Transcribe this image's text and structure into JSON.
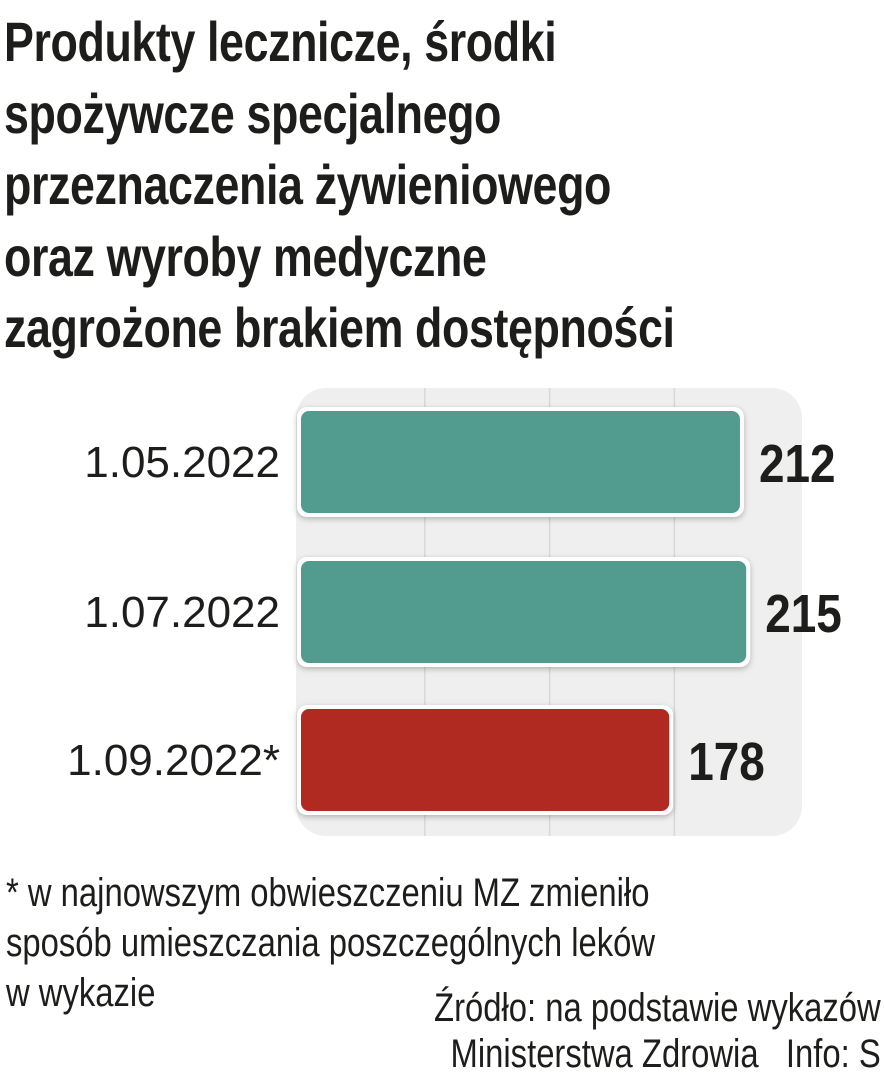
{
  "title_lines": [
    "Produkty lecznicze, środki",
    "spożywcze specjalnego",
    "przeznaczenia żywieniowego",
    "oraz wyroby medyczne",
    "zagrożone brakiem dostępności"
  ],
  "chart_data": {
    "type": "bar",
    "orientation": "horizontal",
    "categories": [
      "1.05.2022",
      "1.07.2022",
      "1.09.2022*"
    ],
    "values": [
      212,
      215,
      178
    ],
    "value_labels": [
      "212",
      "215",
      "178"
    ],
    "colors": [
      "#519c8f",
      "#519c8f",
      "#b02a21"
    ],
    "xlim": [
      0,
      240
    ],
    "gridlines": [
      60,
      120,
      180
    ],
    "grid": true,
    "background": "#efefef"
  },
  "footnote_lines": [
    "* w najnowszym obwieszczeniu MZ zmieniło",
    "sposób umieszczania poszczególnych leków",
    "w wykazie"
  ],
  "source_lines": [
    "Źródło: na podstawie wykazów",
    "Ministerstwa Zdrowia   Info: S"
  ]
}
